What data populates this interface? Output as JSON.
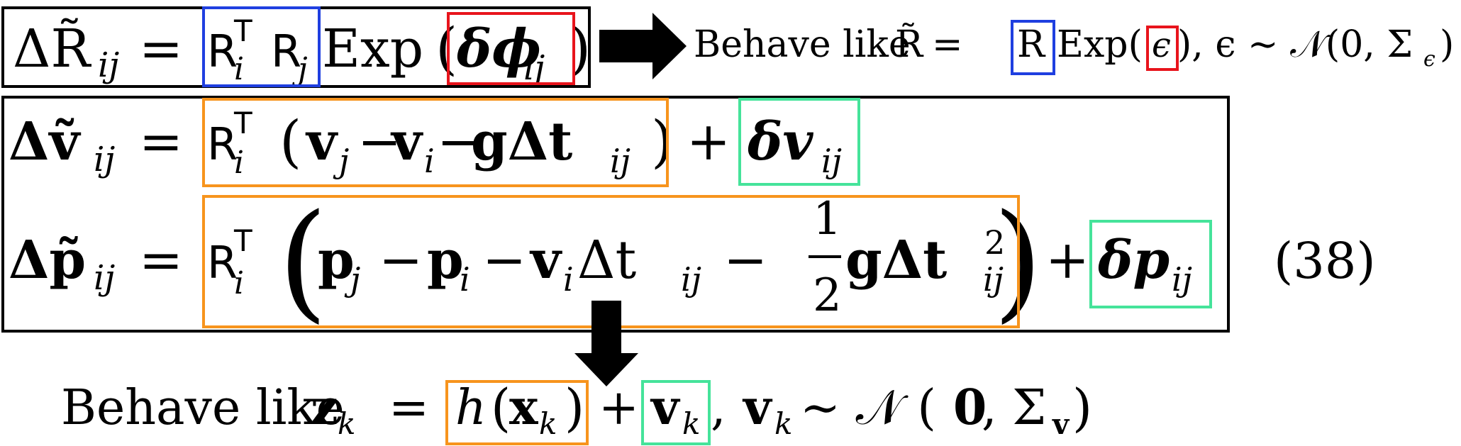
{
  "colors": {
    "ink": "#000000",
    "box_rotation_base": "#1f3fe0",
    "box_noise_rotation": "#e8141c",
    "box_prediction": "#f7941d",
    "box_noise": "#45e39a"
  },
  "arrow_right_label": {
    "behave_like": "Behave like",
    "R_tilde": "R̃",
    "equals": "=",
    "R": "R",
    "exp_open": "Exp(",
    "epsilon": "ϵ",
    "close_rest": "),  ϵ ∼ 𝒩(0, Σ",
    "sigma_sub": "ϵ",
    "close": ")"
  },
  "rotation_eq": {
    "lhs": "ΔR̃",
    "lhs_sub": "ij",
    "equals": "=",
    "Ri": "R",
    "Ri_sub": "i",
    "T": "T",
    "Rj": "R",
    "Rj_sub": "j",
    "exp": "Exp",
    "paren_open": "(",
    "dphi": "δϕ",
    "dphi_sub": "ij",
    "paren_close": ")"
  },
  "velocity_eq": {
    "lhs": "Δṽ",
    "lhs_sub": "ij",
    "equals": "=",
    "R": "R",
    "R_sub": "i",
    "T": "T",
    "paren_open": "(",
    "vj": "v",
    "vj_sub": "j",
    "minus1": "−",
    "vi": "v",
    "vi_sub": "i",
    "minus2": "−",
    "g_dt": "gΔt",
    "dt_sub": "ij",
    "paren_close": ")",
    "plus": "+",
    "dv": "δv",
    "dv_sub": "ij"
  },
  "position_eq": {
    "lhs": "Δp̃",
    "lhs_sub": "ij",
    "equals": "=",
    "R": "R",
    "R_sub": "i",
    "T": "T",
    "paren_open": "(",
    "pj": "p",
    "pj_sub": "j",
    "minus1": "−",
    "pi": "p",
    "pi_sub": "i",
    "minus2": "−",
    "vi": "v",
    "vi_sub": "i",
    "dt": "Δt",
    "dt_sub": "ij",
    "minus3": "−",
    "frac_num": "1",
    "frac_den": "2",
    "g_dt": "gΔt",
    "dt2_sup": "2",
    "dt2_sub": "ij",
    "paren_close": ")",
    "plus": "+",
    "dp": "δp",
    "dp_sub": "ij",
    "eq_number": "(38)"
  },
  "bottom_label": {
    "behave_like": "Behave like",
    "z": "z",
    "z_sub": "k",
    "equals": "=",
    "h": "h",
    "paren_open": "(",
    "x": "x",
    "x_sub": "k",
    "paren_close": ")",
    "plus": "+",
    "v": "v",
    "v_sub": "k",
    "comma": ",",
    "v2": "v",
    "v2_sub": "k",
    "dist": "∼ 𝒩 (",
    "zero": "0",
    "sigma": ", Σ",
    "sigma_sub": "v",
    "close": ")"
  }
}
